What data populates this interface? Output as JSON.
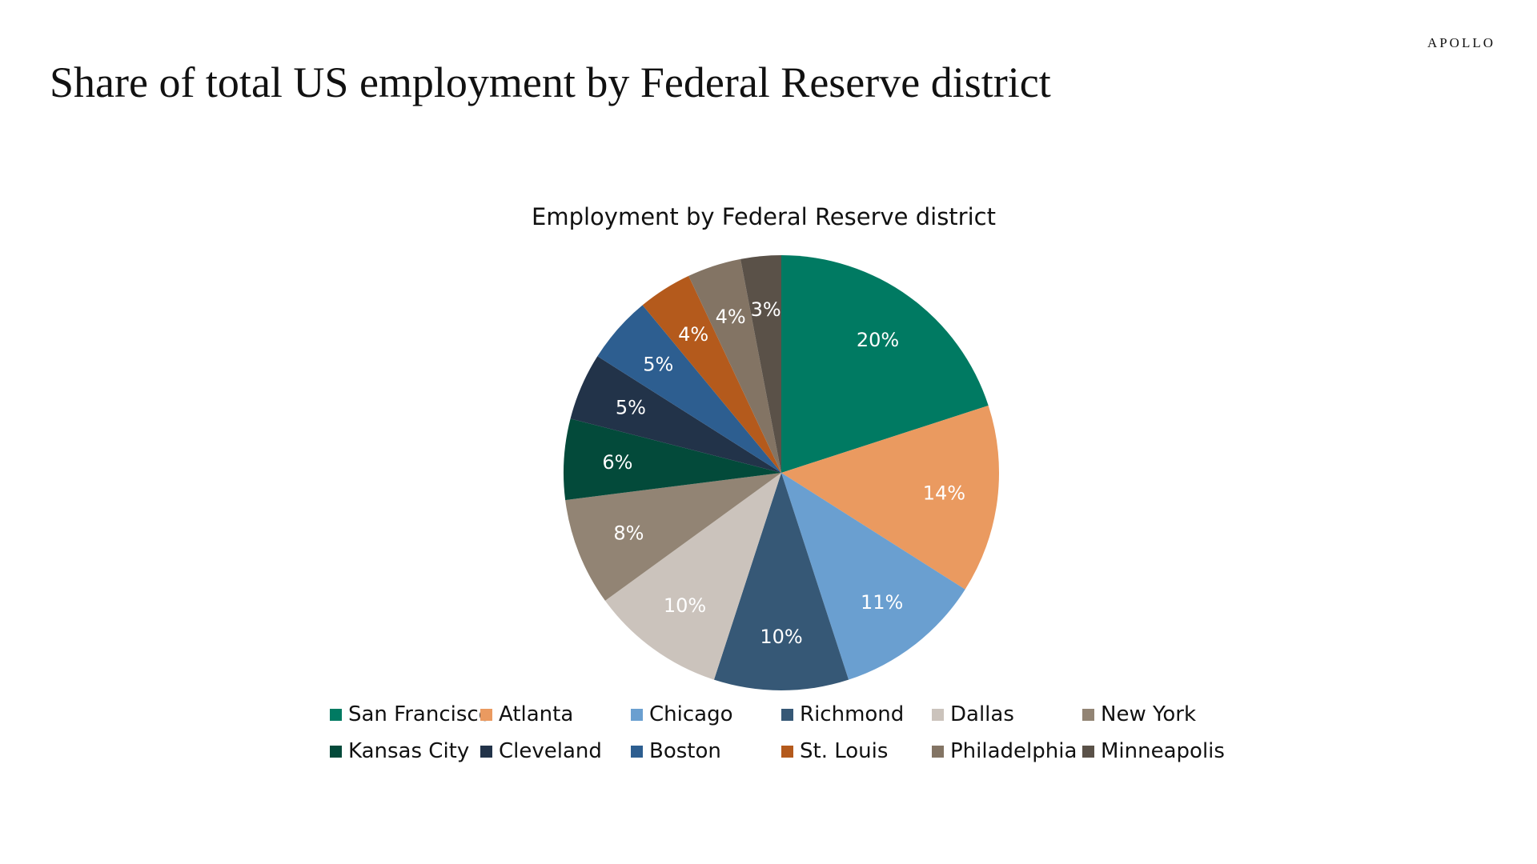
{
  "header": {
    "brand": "APOLLO",
    "title": "Share of  total US employment by Federal Reserve district"
  },
  "chart_data": {
    "type": "pie",
    "title": "Employment by Federal Reserve district",
    "legend_position": "bottom",
    "slices": [
      {
        "label": "San Francisco",
        "value": 20,
        "display": "20%",
        "color": "#007A62"
      },
      {
        "label": "Atlanta",
        "value": 14,
        "display": "14%",
        "color": "#EA9A60"
      },
      {
        "label": "Chicago",
        "value": 11,
        "display": "11%",
        "color": "#6A9FD0"
      },
      {
        "label": "Richmond",
        "value": 10,
        "display": "10%",
        "color": "#365876"
      },
      {
        "label": "Dallas",
        "value": 10,
        "display": "10%",
        "color": "#CBC3BC"
      },
      {
        "label": "New York",
        "value": 8,
        "display": "8%",
        "color": "#928474"
      },
      {
        "label": "Kansas City",
        "value": 6,
        "display": "6%",
        "color": "#034A3A"
      },
      {
        "label": "Cleveland",
        "value": 5,
        "display": "5%",
        "color": "#223349"
      },
      {
        "label": "Boston",
        "value": 5,
        "display": "5%",
        "color": "#2D5E90"
      },
      {
        "label": "St. Louis",
        "value": 4,
        "display": "4%",
        "color": "#B45A1C"
      },
      {
        "label": "Philadelphia",
        "value": 4,
        "display": "4%",
        "color": "#837464"
      },
      {
        "label": "Minneapolis",
        "value": 3,
        "display": "3%",
        "color": "#5A5148"
      }
    ]
  }
}
